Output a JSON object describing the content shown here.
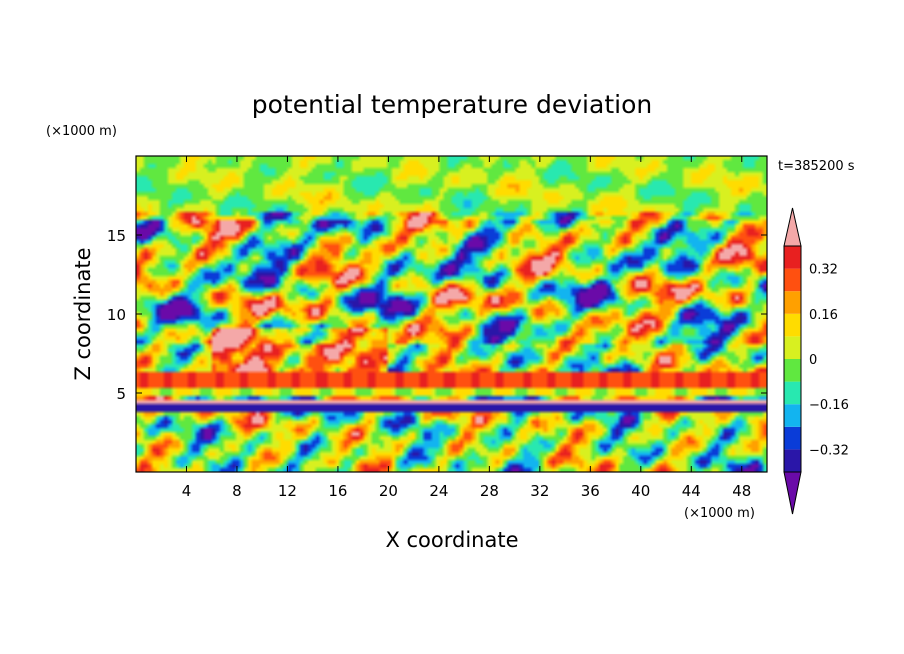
{
  "chart_data": {
    "type": "heatmap",
    "title": "potential temperature deviation",
    "xlabel": "X coordinate",
    "ylabel": "Z coordinate",
    "x_unit": "(×1000 m)",
    "y_unit": "(×1000 m)",
    "time_label": "t=385200 s",
    "xlim": [
      0,
      50
    ],
    "ylim": [
      0,
      20
    ],
    "x_ticks": [
      4,
      8,
      12,
      16,
      20,
      24,
      28,
      32,
      36,
      40,
      44,
      48
    ],
    "y_ticks": [
      5,
      10,
      15
    ],
    "colorbar": {
      "levels": [
        -0.4,
        -0.32,
        -0.24,
        -0.16,
        -0.08,
        0,
        0.08,
        0.16,
        0.24,
        0.32,
        0.4
      ],
      "tick_values": [
        0.32,
        0.16,
        0,
        -0.16,
        -0.32
      ],
      "tick_labels": [
        "0.32",
        "0.16",
        "0",
        "−0.16",
        "−0.32"
      ],
      "colors": [
        "#6a0aa8",
        "#2a16a8",
        "#0a3cd8",
        "#12b4f0",
        "#28e8b0",
        "#60e840",
        "#d8f020",
        "#ffdc00",
        "#ffa000",
        "#ff5010",
        "#e82020",
        "#f4a8a8"
      ],
      "under_color": "#6a0aa8",
      "over_color": "#f4a8a8"
    }
  }
}
